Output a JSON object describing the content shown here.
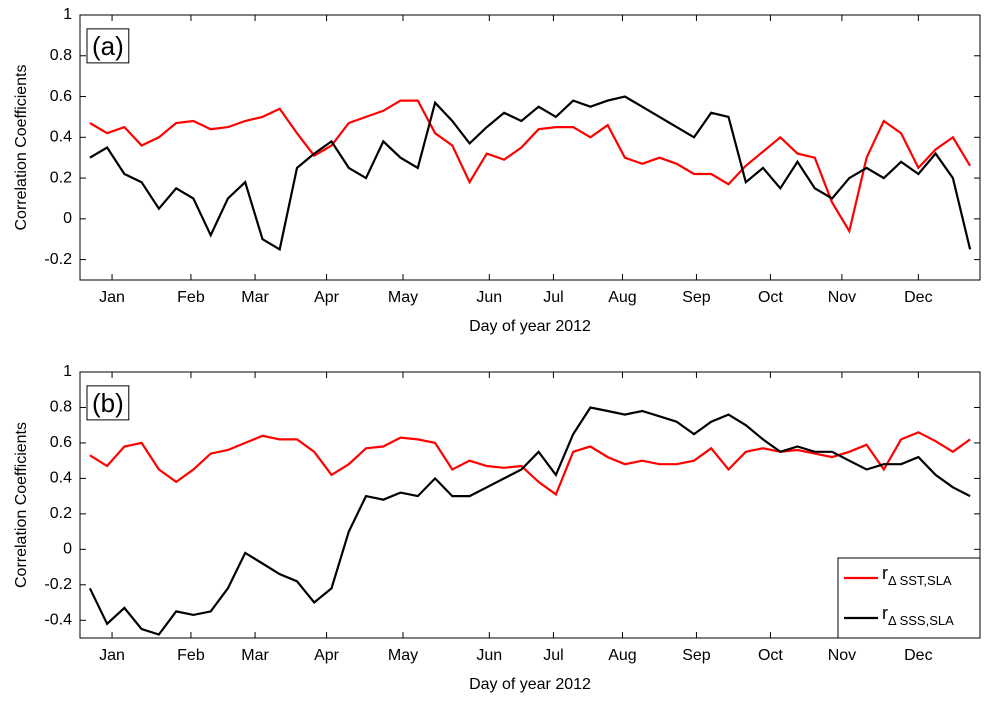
{
  "chart_data": [
    {
      "type": "line",
      "annotation": "(a)",
      "xlabel": "Day of year 2012",
      "ylabel": "Correlation Coefficients",
      "xlim": [
        1,
        366
      ],
      "xticks": [
        {
          "value": 14,
          "label": "Jan"
        },
        {
          "value": 46,
          "label": "Feb"
        },
        {
          "value": 72,
          "label": "Mar"
        },
        {
          "value": 101,
          "label": "Apr"
        },
        {
          "value": 132,
          "label": "May"
        },
        {
          "value": 167,
          "label": "Jun"
        },
        {
          "value": 193,
          "label": "Jul"
        },
        {
          "value": 221,
          "label": "Aug"
        },
        {
          "value": 251,
          "label": "Sep"
        },
        {
          "value": 281,
          "label": "Oct"
        },
        {
          "value": 310,
          "label": "Nov"
        },
        {
          "value": 341,
          "label": "Dec"
        }
      ],
      "ylim": [
        -0.3,
        1
      ],
      "yticks": [
        -0.2,
        0,
        0.2,
        0.4,
        0.6,
        0.8,
        1
      ],
      "x": [
        5,
        12,
        19,
        26,
        33,
        40,
        47,
        54,
        61,
        68,
        75,
        82,
        89,
        96,
        103,
        110,
        117,
        124,
        131,
        138,
        145,
        152,
        159,
        166,
        173,
        180,
        187,
        194,
        201,
        208,
        215,
        222,
        229,
        236,
        243,
        250,
        257,
        264,
        271,
        278,
        285,
        292,
        299,
        306,
        313,
        320,
        327,
        334,
        341,
        348,
        355,
        362
      ],
      "series": [
        {
          "color": "#ff0000",
          "values": [
            0.47,
            0.42,
            0.45,
            0.36,
            0.4,
            0.47,
            0.48,
            0.44,
            0.45,
            0.48,
            0.5,
            0.54,
            0.42,
            0.31,
            0.36,
            0.47,
            0.5,
            0.53,
            0.58,
            0.58,
            0.42,
            0.36,
            0.18,
            0.32,
            0.29,
            0.35,
            0.44,
            0.45,
            0.45,
            0.4,
            0.46,
            0.3,
            0.27,
            0.3,
            0.27,
            0.22,
            0.22,
            0.17,
            0.26,
            0.33,
            0.4,
            0.32,
            0.3,
            0.08,
            -0.06,
            0.3,
            0.48,
            0.42,
            0.25,
            0.34,
            0.4,
            0.26
          ]
        },
        {
          "color": "#000000",
          "values": [
            0.3,
            0.35,
            0.22,
            0.18,
            0.05,
            0.15,
            0.1,
            -0.08,
            0.1,
            0.18,
            -0.1,
            -0.15,
            0.25,
            0.32,
            0.38,
            0.25,
            0.2,
            0.38,
            0.3,
            0.25,
            0.57,
            0.48,
            0.37,
            0.45,
            0.52,
            0.48,
            0.55,
            0.5,
            0.58,
            0.55,
            0.58,
            0.6,
            0.55,
            0.5,
            0.45,
            0.4,
            0.52,
            0.5,
            0.18,
            0.25,
            0.15,
            0.28,
            0.15,
            0.1,
            0.2,
            0.25,
            0.2,
            0.28,
            0.22,
            0.32,
            0.2,
            -0.15
          ]
        }
      ]
    },
    {
      "type": "line",
      "annotation": "(b)",
      "xlabel": "Day of year 2012",
      "ylabel": "Correlation Coefficients",
      "xlim": [
        1,
        366
      ],
      "xticks": [
        {
          "value": 14,
          "label": "Jan"
        },
        {
          "value": 46,
          "label": "Feb"
        },
        {
          "value": 72,
          "label": "Mar"
        },
        {
          "value": 101,
          "label": "Apr"
        },
        {
          "value": 132,
          "label": "May"
        },
        {
          "value": 167,
          "label": "Jun"
        },
        {
          "value": 193,
          "label": "Jul"
        },
        {
          "value": 221,
          "label": "Aug"
        },
        {
          "value": 251,
          "label": "Sep"
        },
        {
          "value": 281,
          "label": "Oct"
        },
        {
          "value": 310,
          "label": "Nov"
        },
        {
          "value": 341,
          "label": "Dec"
        }
      ],
      "ylim": [
        -0.5,
        1
      ],
      "yticks": [
        -0.4,
        -0.2,
        0,
        0.2,
        0.4,
        0.6,
        0.8,
        1
      ],
      "legend": "lower right",
      "x": [
        5,
        12,
        19,
        26,
        33,
        40,
        47,
        54,
        61,
        68,
        75,
        82,
        89,
        96,
        103,
        110,
        117,
        124,
        131,
        138,
        145,
        152,
        159,
        166,
        173,
        180,
        187,
        194,
        201,
        208,
        215,
        222,
        229,
        236,
        243,
        250,
        257,
        264,
        271,
        278,
        285,
        292,
        299,
        306,
        313,
        320,
        327,
        334,
        341,
        348,
        355,
        362
      ],
      "series": [
        {
          "name": "rΔ SST,SLA",
          "color": "#ff0000",
          "values": [
            0.53,
            0.47,
            0.58,
            0.6,
            0.45,
            0.38,
            0.45,
            0.54,
            0.56,
            0.6,
            0.64,
            0.62,
            0.62,
            0.55,
            0.42,
            0.48,
            0.57,
            0.58,
            0.63,
            0.62,
            0.6,
            0.45,
            0.5,
            0.47,
            0.46,
            0.47,
            0.38,
            0.31,
            0.55,
            0.58,
            0.52,
            0.48,
            0.5,
            0.48,
            0.48,
            0.5,
            0.57,
            0.45,
            0.55,
            0.57,
            0.55,
            0.56,
            0.54,
            0.52,
            0.55,
            0.59,
            0.45,
            0.62,
            0.66,
            0.61,
            0.55,
            0.62
          ]
        },
        {
          "name": "rΔ SSS,SLA",
          "color": "#000000",
          "values": [
            -0.22,
            -0.42,
            -0.33,
            -0.45,
            -0.48,
            -0.35,
            -0.37,
            -0.35,
            -0.22,
            -0.02,
            -0.08,
            -0.14,
            -0.18,
            -0.3,
            -0.22,
            0.1,
            0.3,
            0.28,
            0.32,
            0.3,
            0.4,
            0.3,
            0.3,
            0.35,
            0.4,
            0.45,
            0.55,
            0.42,
            0.65,
            0.8,
            0.78,
            0.76,
            0.78,
            0.75,
            0.72,
            0.65,
            0.72,
            0.76,
            0.7,
            0.62,
            0.55,
            0.58,
            0.55,
            0.55,
            0.5,
            0.45,
            0.48,
            0.48,
            0.52,
            0.42,
            0.35,
            0.3
          ]
        }
      ]
    }
  ]
}
